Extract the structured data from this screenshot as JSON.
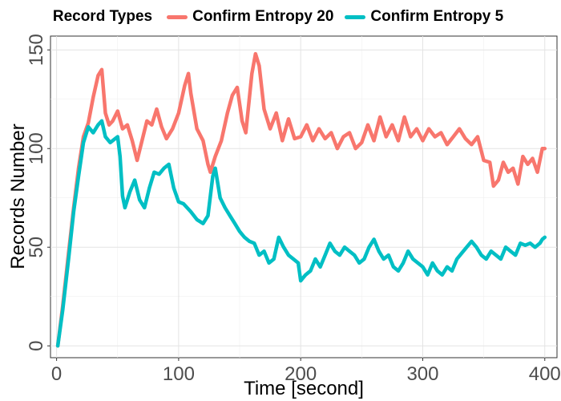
{
  "chart_data": {
    "type": "line",
    "title": "",
    "xlabel": "Time [second]",
    "ylabel": "Records Number",
    "xlim": [
      -5,
      410
    ],
    "ylim": [
      -6,
      157
    ],
    "x_ticks": [
      0,
      100,
      200,
      300,
      400
    ],
    "y_ticks": [
      0,
      50,
      100,
      150
    ],
    "x_tick_labels": [
      "0",
      "100",
      "200",
      "300",
      "400"
    ],
    "y_tick_labels": [
      "0",
      "50",
      "100",
      "150"
    ],
    "grid": true,
    "legend": {
      "title": "Record Types",
      "placement": "top"
    },
    "series": [
      {
        "name": "Confirm Entropy 20",
        "color": "#F8766D",
        "points": [
          [
            1,
            0
          ],
          [
            5,
            20
          ],
          [
            10,
            48
          ],
          [
            14,
            70
          ],
          [
            18,
            90
          ],
          [
            22,
            106
          ],
          [
            26,
            113
          ],
          [
            30,
            126
          ],
          [
            34,
            137
          ],
          [
            37,
            140
          ],
          [
            40,
            118
          ],
          [
            43,
            112
          ],
          [
            46,
            114
          ],
          [
            50,
            119
          ],
          [
            54,
            110
          ],
          [
            58,
            112
          ],
          [
            62,
            104
          ],
          [
            66,
            94
          ],
          [
            70,
            104
          ],
          [
            74,
            114
          ],
          [
            78,
            112
          ],
          [
            82,
            120
          ],
          [
            86,
            111
          ],
          [
            90,
            105
          ],
          [
            95,
            110
          ],
          [
            100,
            118
          ],
          [
            105,
            132
          ],
          [
            108,
            138
          ],
          [
            110,
            128
          ],
          [
            115,
            110
          ],
          [
            120,
            104
          ],
          [
            124,
            92
          ],
          [
            126,
            88
          ],
          [
            130,
            96
          ],
          [
            135,
            104
          ],
          [
            140,
            118
          ],
          [
            144,
            127
          ],
          [
            148,
            131
          ],
          [
            152,
            114
          ],
          [
            155,
            108
          ],
          [
            160,
            138
          ],
          [
            163,
            148
          ],
          [
            166,
            142
          ],
          [
            170,
            120
          ],
          [
            175,
            110
          ],
          [
            180,
            118
          ],
          [
            185,
            104
          ],
          [
            190,
            115
          ],
          [
            195,
            105
          ],
          [
            200,
            106
          ],
          [
            205,
            112
          ],
          [
            210,
            104
          ],
          [
            215,
            110
          ],
          [
            220,
            105
          ],
          [
            225,
            108
          ],
          [
            230,
            100
          ],
          [
            235,
            106
          ],
          [
            240,
            108
          ],
          [
            245,
            100
          ],
          [
            250,
            103
          ],
          [
            255,
            112
          ],
          [
            260,
            104
          ],
          [
            265,
            116
          ],
          [
            270,
            106
          ],
          [
            275,
            112
          ],
          [
            280,
            104
          ],
          [
            285,
            116
          ],
          [
            290,
            106
          ],
          [
            295,
            110
          ],
          [
            300,
            104
          ],
          [
            305,
            110
          ],
          [
            310,
            106
          ],
          [
            315,
            108
          ],
          [
            320,
            102
          ],
          [
            325,
            106
          ],
          [
            330,
            110
          ],
          [
            335,
            105
          ],
          [
            340,
            102
          ],
          [
            345,
            106
          ],
          [
            350,
            94
          ],
          [
            355,
            93
          ],
          [
            358,
            81
          ],
          [
            362,
            84
          ],
          [
            366,
            93
          ],
          [
            370,
            88
          ],
          [
            374,
            90
          ],
          [
            378,
            82
          ],
          [
            382,
            96
          ],
          [
            386,
            92
          ],
          [
            390,
            95
          ],
          [
            394,
            88
          ],
          [
            398,
            100
          ],
          [
            400,
            100
          ]
        ]
      },
      {
        "name": "Confirm Entropy 5",
        "color": "#00BFC4",
        "points": [
          [
            1,
            0
          ],
          [
            5,
            18
          ],
          [
            10,
            45
          ],
          [
            14,
            68
          ],
          [
            18,
            86
          ],
          [
            22,
            103
          ],
          [
            26,
            111
          ],
          [
            30,
            108
          ],
          [
            34,
            112
          ],
          [
            37,
            114
          ],
          [
            40,
            106
          ],
          [
            44,
            103
          ],
          [
            48,
            105
          ],
          [
            50,
            106
          ],
          [
            52,
            96
          ],
          [
            54,
            76
          ],
          [
            56,
            70
          ],
          [
            60,
            78
          ],
          [
            64,
            84
          ],
          [
            68,
            74
          ],
          [
            72,
            70
          ],
          [
            76,
            80
          ],
          [
            80,
            88
          ],
          [
            84,
            87
          ],
          [
            88,
            90
          ],
          [
            92,
            92
          ],
          [
            96,
            80
          ],
          [
            100,
            73
          ],
          [
            104,
            72
          ],
          [
            110,
            68
          ],
          [
            115,
            64
          ],
          [
            120,
            62
          ],
          [
            124,
            66
          ],
          [
            128,
            86
          ],
          [
            130,
            90
          ],
          [
            134,
            75
          ],
          [
            138,
            70
          ],
          [
            142,
            66
          ],
          [
            146,
            62
          ],
          [
            150,
            58
          ],
          [
            154,
            55
          ],
          [
            158,
            53
          ],
          [
            162,
            52
          ],
          [
            166,
            46
          ],
          [
            170,
            48
          ],
          [
            174,
            42
          ],
          [
            178,
            44
          ],
          [
            182,
            55
          ],
          [
            186,
            50
          ],
          [
            190,
            46
          ],
          [
            194,
            44
          ],
          [
            198,
            42
          ],
          [
            200,
            33
          ],
          [
            204,
            36
          ],
          [
            208,
            38
          ],
          [
            212,
            44
          ],
          [
            216,
            40
          ],
          [
            220,
            46
          ],
          [
            224,
            52
          ],
          [
            228,
            48
          ],
          [
            232,
            46
          ],
          [
            236,
            50
          ],
          [
            240,
            48
          ],
          [
            244,
            46
          ],
          [
            248,
            42
          ],
          [
            252,
            44
          ],
          [
            256,
            50
          ],
          [
            260,
            54
          ],
          [
            264,
            48
          ],
          [
            268,
            44
          ],
          [
            272,
            46
          ],
          [
            276,
            40
          ],
          [
            280,
            38
          ],
          [
            284,
            42
          ],
          [
            288,
            48
          ],
          [
            292,
            44
          ],
          [
            296,
            42
          ],
          [
            300,
            40
          ],
          [
            304,
            36
          ],
          [
            308,
            42
          ],
          [
            312,
            38
          ],
          [
            316,
            36
          ],
          [
            320,
            40
          ],
          [
            324,
            38
          ],
          [
            328,
            44
          ],
          [
            332,
            47
          ],
          [
            336,
            50
          ],
          [
            340,
            53
          ],
          [
            344,
            50
          ],
          [
            348,
            46
          ],
          [
            352,
            44
          ],
          [
            356,
            48
          ],
          [
            360,
            46
          ],
          [
            364,
            44
          ],
          [
            368,
            50
          ],
          [
            372,
            48
          ],
          [
            376,
            46
          ],
          [
            380,
            52
          ],
          [
            384,
            51
          ],
          [
            388,
            52
          ],
          [
            392,
            50
          ],
          [
            396,
            52
          ],
          [
            398,
            54
          ],
          [
            400,
            55
          ]
        ]
      }
    ]
  }
}
